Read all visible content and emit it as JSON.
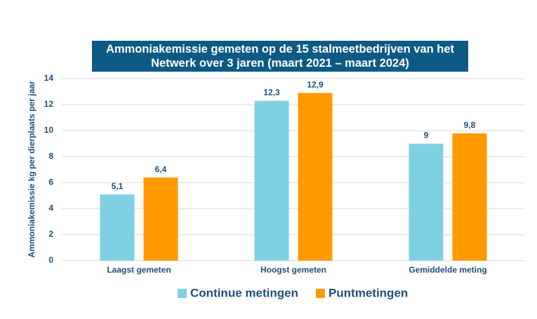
{
  "chart_data": {
    "type": "bar",
    "title": "Ammoniakemissie gemeten op de 15 stalmeetbedrijven van het Netwerk over 3 jaren (maart 2021 – maart 2024)",
    "y_label": "Ammoniakemissie kg per dierplaats per jaar",
    "categories": [
      "Laagst gemeten",
      "Hoogst gemeten",
      "Gemiddelde meting"
    ],
    "series": [
      {
        "name": "Continue metingen",
        "color": "#7fd0e3",
        "values": [
          5.1,
          12.3,
          9
        ],
        "value_labels": [
          "5,1",
          "12,3",
          "9"
        ]
      },
      {
        "name": "Puntmetingen",
        "color": "#ff9900",
        "values": [
          6.4,
          12.9,
          9.8
        ],
        "value_labels": [
          "6,4",
          "12,9",
          "9,8"
        ]
      }
    ],
    "ylim": [
      0,
      14
    ],
    "yticks": [
      0,
      2,
      4,
      6,
      8,
      10,
      12,
      14
    ],
    "grid": true,
    "legend": "bottom"
  }
}
